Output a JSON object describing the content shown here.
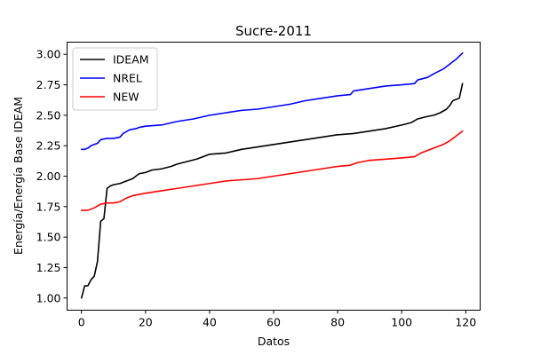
{
  "chart_data": {
    "type": "line",
    "title": "Sucre-2011",
    "xlabel": "Datos",
    "ylabel": "Energía/Energía Base IDEAM",
    "xlim": [
      -4.5,
      124.5
    ],
    "ylim": [
      0.9,
      3.1
    ],
    "xticks": [
      0,
      20,
      40,
      60,
      80,
      100,
      120
    ],
    "yticks": [
      1.0,
      1.25,
      1.5,
      1.75,
      2.0,
      2.25,
      2.5,
      2.75,
      3.0
    ],
    "ytick_labels": [
      "1.00",
      "1.25",
      "1.50",
      "1.75",
      "2.00",
      "2.25",
      "2.50",
      "2.75",
      "3.00"
    ],
    "grid": false,
    "legend_position": "upper-left",
    "series_colors": {
      "IDEAM": "#000000",
      "NREL": "#0000ff",
      "NEW": "#ff0000"
    },
    "series": [
      {
        "name": "IDEAM",
        "points": [
          [
            0,
            1.0
          ],
          [
            1,
            1.1
          ],
          [
            2,
            1.1
          ],
          [
            3,
            1.15
          ],
          [
            4,
            1.18
          ],
          [
            5,
            1.3
          ],
          [
            6,
            1.63
          ],
          [
            7,
            1.65
          ],
          [
            8,
            1.9
          ],
          [
            9,
            1.92
          ],
          [
            10,
            1.93
          ],
          [
            12,
            1.94
          ],
          [
            14,
            1.96
          ],
          [
            16,
            1.98
          ],
          [
            17,
            2.0
          ],
          [
            18,
            2.02
          ],
          [
            20,
            2.03
          ],
          [
            22,
            2.05
          ],
          [
            25,
            2.06
          ],
          [
            28,
            2.08
          ],
          [
            30,
            2.1
          ],
          [
            33,
            2.12
          ],
          [
            36,
            2.14
          ],
          [
            38,
            2.16
          ],
          [
            40,
            2.18
          ],
          [
            45,
            2.19
          ],
          [
            50,
            2.22
          ],
          [
            55,
            2.24
          ],
          [
            60,
            2.26
          ],
          [
            65,
            2.28
          ],
          [
            70,
            2.3
          ],
          [
            75,
            2.32
          ],
          [
            80,
            2.34
          ],
          [
            85,
            2.35
          ],
          [
            90,
            2.37
          ],
          [
            95,
            2.39
          ],
          [
            100,
            2.42
          ],
          [
            103,
            2.44
          ],
          [
            105,
            2.47
          ],
          [
            108,
            2.49
          ],
          [
            110,
            2.5
          ],
          [
            112,
            2.52
          ],
          [
            114,
            2.55
          ],
          [
            115,
            2.58
          ],
          [
            116,
            2.62
          ],
          [
            118,
            2.64
          ],
          [
            119,
            2.76
          ]
        ]
      },
      {
        "name": "NREL",
        "points": [
          [
            0,
            2.22
          ],
          [
            1,
            2.22
          ],
          [
            2,
            2.23
          ],
          [
            3,
            2.25
          ],
          [
            4,
            2.26
          ],
          [
            5,
            2.27
          ],
          [
            6,
            2.3
          ],
          [
            8,
            2.31
          ],
          [
            10,
            2.31
          ],
          [
            12,
            2.32
          ],
          [
            13,
            2.35
          ],
          [
            15,
            2.38
          ],
          [
            17,
            2.39
          ],
          [
            18,
            2.4
          ],
          [
            20,
            2.41
          ],
          [
            25,
            2.42
          ],
          [
            30,
            2.45
          ],
          [
            35,
            2.47
          ],
          [
            40,
            2.5
          ],
          [
            45,
            2.52
          ],
          [
            50,
            2.54
          ],
          [
            55,
            2.55
          ],
          [
            60,
            2.57
          ],
          [
            65,
            2.59
          ],
          [
            70,
            2.62
          ],
          [
            75,
            2.64
          ],
          [
            80,
            2.66
          ],
          [
            84,
            2.67
          ],
          [
            85,
            2.7
          ],
          [
            90,
            2.72
          ],
          [
            95,
            2.74
          ],
          [
            100,
            2.75
          ],
          [
            104,
            2.76
          ],
          [
            105,
            2.79
          ],
          [
            108,
            2.81
          ],
          [
            110,
            2.84
          ],
          [
            113,
            2.88
          ],
          [
            115,
            2.92
          ],
          [
            117,
            2.96
          ],
          [
            119,
            3.01
          ]
        ]
      },
      {
        "name": "NEW",
        "points": [
          [
            0,
            1.72
          ],
          [
            2,
            1.72
          ],
          [
            4,
            1.74
          ],
          [
            6,
            1.77
          ],
          [
            8,
            1.78
          ],
          [
            10,
            1.78
          ],
          [
            12,
            1.79
          ],
          [
            14,
            1.82
          ],
          [
            16,
            1.84
          ],
          [
            18,
            1.85
          ],
          [
            20,
            1.86
          ],
          [
            25,
            1.88
          ],
          [
            30,
            1.9
          ],
          [
            35,
            1.92
          ],
          [
            40,
            1.94
          ],
          [
            45,
            1.96
          ],
          [
            50,
            1.97
          ],
          [
            55,
            1.98
          ],
          [
            60,
            2.0
          ],
          [
            65,
            2.02
          ],
          [
            70,
            2.04
          ],
          [
            75,
            2.06
          ],
          [
            80,
            2.08
          ],
          [
            84,
            2.09
          ],
          [
            86,
            2.11
          ],
          [
            90,
            2.13
          ],
          [
            95,
            2.14
          ],
          [
            100,
            2.15
          ],
          [
            104,
            2.16
          ],
          [
            106,
            2.19
          ],
          [
            110,
            2.23
          ],
          [
            113,
            2.26
          ],
          [
            115,
            2.29
          ],
          [
            117,
            2.33
          ],
          [
            119,
            2.37
          ]
        ]
      }
    ]
  }
}
